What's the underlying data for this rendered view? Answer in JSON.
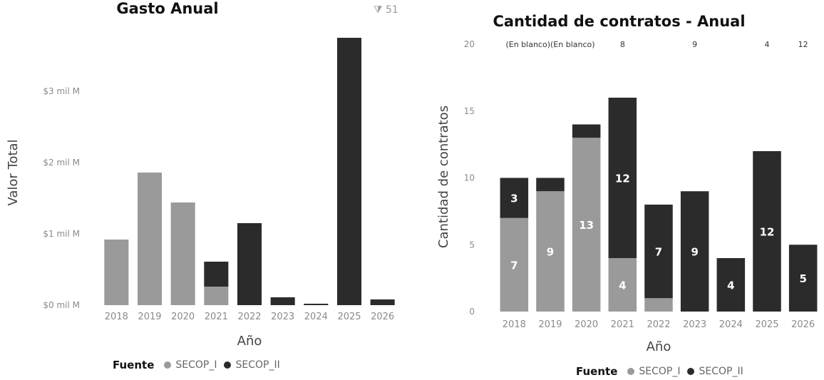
{
  "colors": {
    "SECOP_I": "#9a9a9a",
    "SECOP_II": "#2b2b2b",
    "header_icon": "#9a9a9a"
  },
  "header_icon": "filter-icon",
  "header_text": "51",
  "legend": {
    "title": "Fuente",
    "items": [
      "SECOP_I",
      "SECOP_II"
    ]
  },
  "chart_data": [
    {
      "type": "bar",
      "stacked": true,
      "title": "Gasto Anual",
      "xlabel": "Año",
      "ylabel": "Valor Total",
      "categories": [
        "2018",
        "2019",
        "2020",
        "2021",
        "2022",
        "2023",
        "2024",
        "2025",
        "2026"
      ],
      "ylim": [
        0,
        3.7
      ],
      "yticks": [
        0,
        1,
        2,
        3
      ],
      "ytick_labels": [
        "$0 mil M",
        "$1 mil M",
        "$2 mil M",
        "$3 mil M"
      ],
      "series": [
        {
          "name": "SECOP_I",
          "values": [
            0.92,
            1.86,
            1.44,
            0.26,
            0,
            0,
            0,
            0,
            0
          ]
        },
        {
          "name": "SECOP_II",
          "values": [
            0,
            0,
            0,
            0.35,
            1.15,
            0.11,
            0.02,
            3.75,
            0.08
          ]
        }
      ],
      "grid": false,
      "legend_position": "bottom-left"
    },
    {
      "type": "bar",
      "stacked": true,
      "title": "Cantidad de contratos - Anual",
      "xlabel": "Año",
      "ylabel": "Cantidad de contratos",
      "categories": [
        "2018",
        "2019",
        "2020",
        "2021",
        "2022",
        "2023",
        "2024",
        "2025",
        "2026"
      ],
      "ylim": [
        0,
        20
      ],
      "yticks": [
        0,
        5,
        10,
        15,
        20
      ],
      "series": [
        {
          "name": "SECOP_I",
          "values": [
            7,
            9,
            13,
            4,
            1,
            0,
            0,
            0,
            0
          ]
        },
        {
          "name": "SECOP_II",
          "values": [
            3,
            1,
            1,
            12,
            7,
            9,
            4,
            12,
            5
          ]
        }
      ],
      "data_labels": {
        "SECOP_I": [
          "7",
          "9",
          "13",
          "4",
          "",
          "",
          "",
          "",
          ""
        ],
        "SECOP_II": [
          "3",
          "",
          "",
          "12",
          "7",
          "9",
          "4",
          "12",
          "5"
        ]
      },
      "top_annotations": [
        {
          "category": "2019",
          "text": "(En blanco)(En blanco)"
        },
        {
          "category": "2021",
          "text": "8"
        },
        {
          "category": "2023",
          "text": "9"
        },
        {
          "category": "2025",
          "text": "4"
        },
        {
          "category": "2026",
          "text": "12"
        }
      ],
      "grid": false,
      "legend_position": "bottom-center"
    }
  ]
}
